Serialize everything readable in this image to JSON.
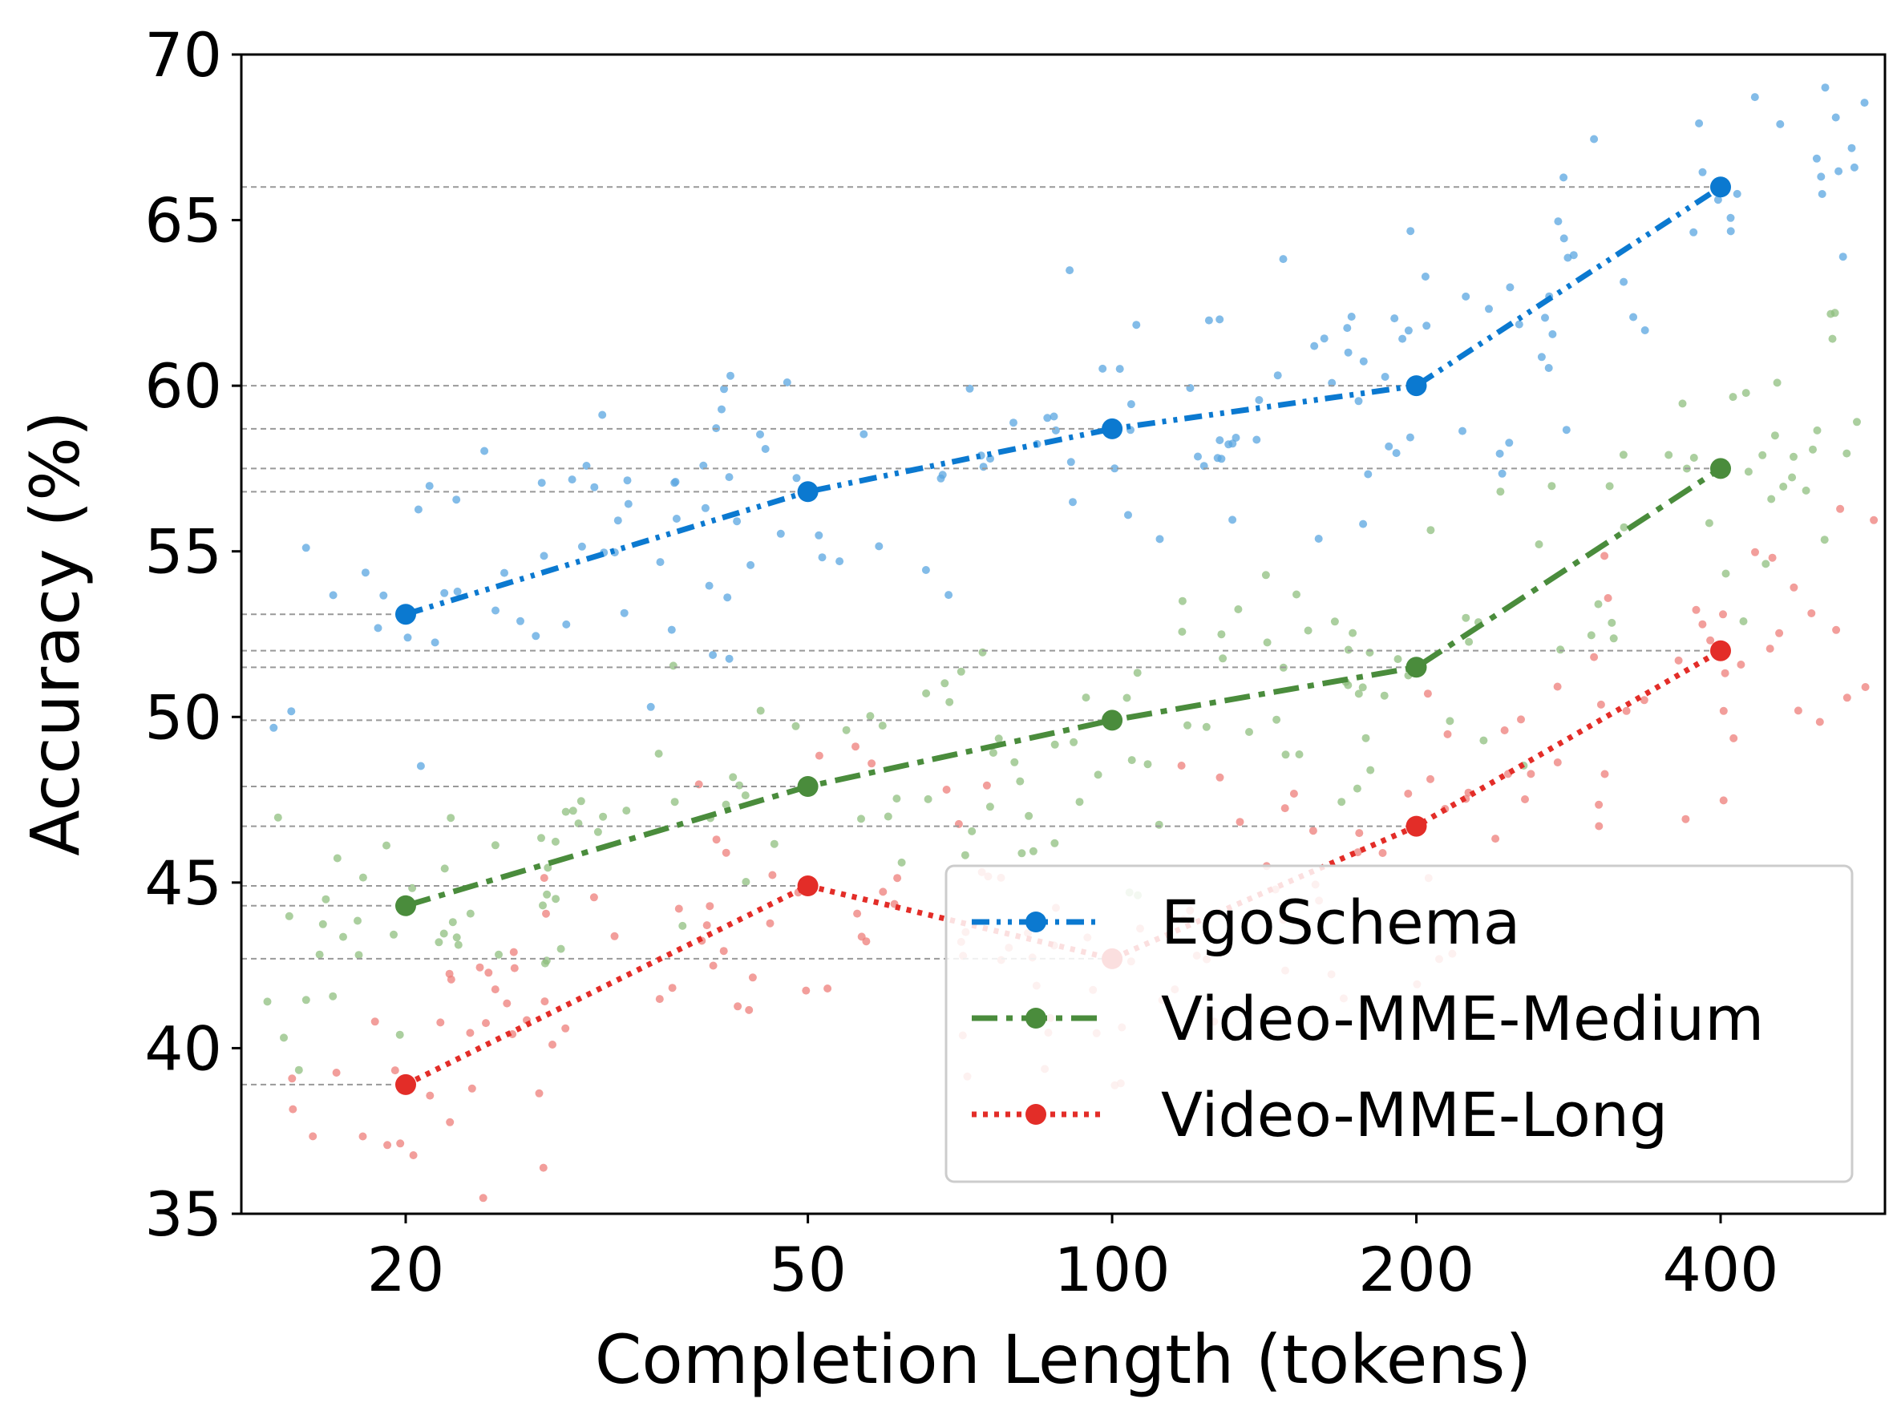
{
  "chart_data": {
    "type": "line",
    "xscale": "log",
    "xlabel": "Completion Length (tokens)",
    "ylabel": "Accuracy (%)",
    "ylim": [
      35,
      70
    ],
    "yticks": [
      "35",
      "40",
      "45",
      "50",
      "55",
      "60",
      "65",
      "70"
    ],
    "x": [
      20,
      50,
      100,
      200,
      400
    ],
    "xtick_labels": [
      "20",
      "50",
      "100",
      "200",
      "400"
    ],
    "reference_lines": [
      66.0,
      60.0,
      58.7,
      57.5,
      56.8,
      53.1,
      52.0,
      51.5,
      49.9,
      47.9,
      46.7,
      44.9,
      44.3,
      42.7,
      38.9
    ],
    "legend_position": "lower-right",
    "series": [
      {
        "name": "EgoSchema",
        "color": "#0b79d0",
        "scatter_color": "#5aa6e0",
        "style": "dash-dot-dot",
        "values": [
          53.1,
          56.8,
          58.7,
          60.0,
          66.0
        ]
      },
      {
        "name": "Video-MME-Medium",
        "color": "#4a8c3c",
        "scatter_color": "#8fbf7f",
        "style": "dash-dot",
        "values": [
          44.3,
          47.9,
          49.9,
          51.5,
          57.5
        ]
      },
      {
        "name": "Video-MME-Long",
        "color": "#e32d28",
        "scatter_color": "#ee7e7a",
        "style": "dotted",
        "values": [
          38.9,
          44.9,
          42.7,
          46.7,
          52.0
        ]
      }
    ]
  }
}
